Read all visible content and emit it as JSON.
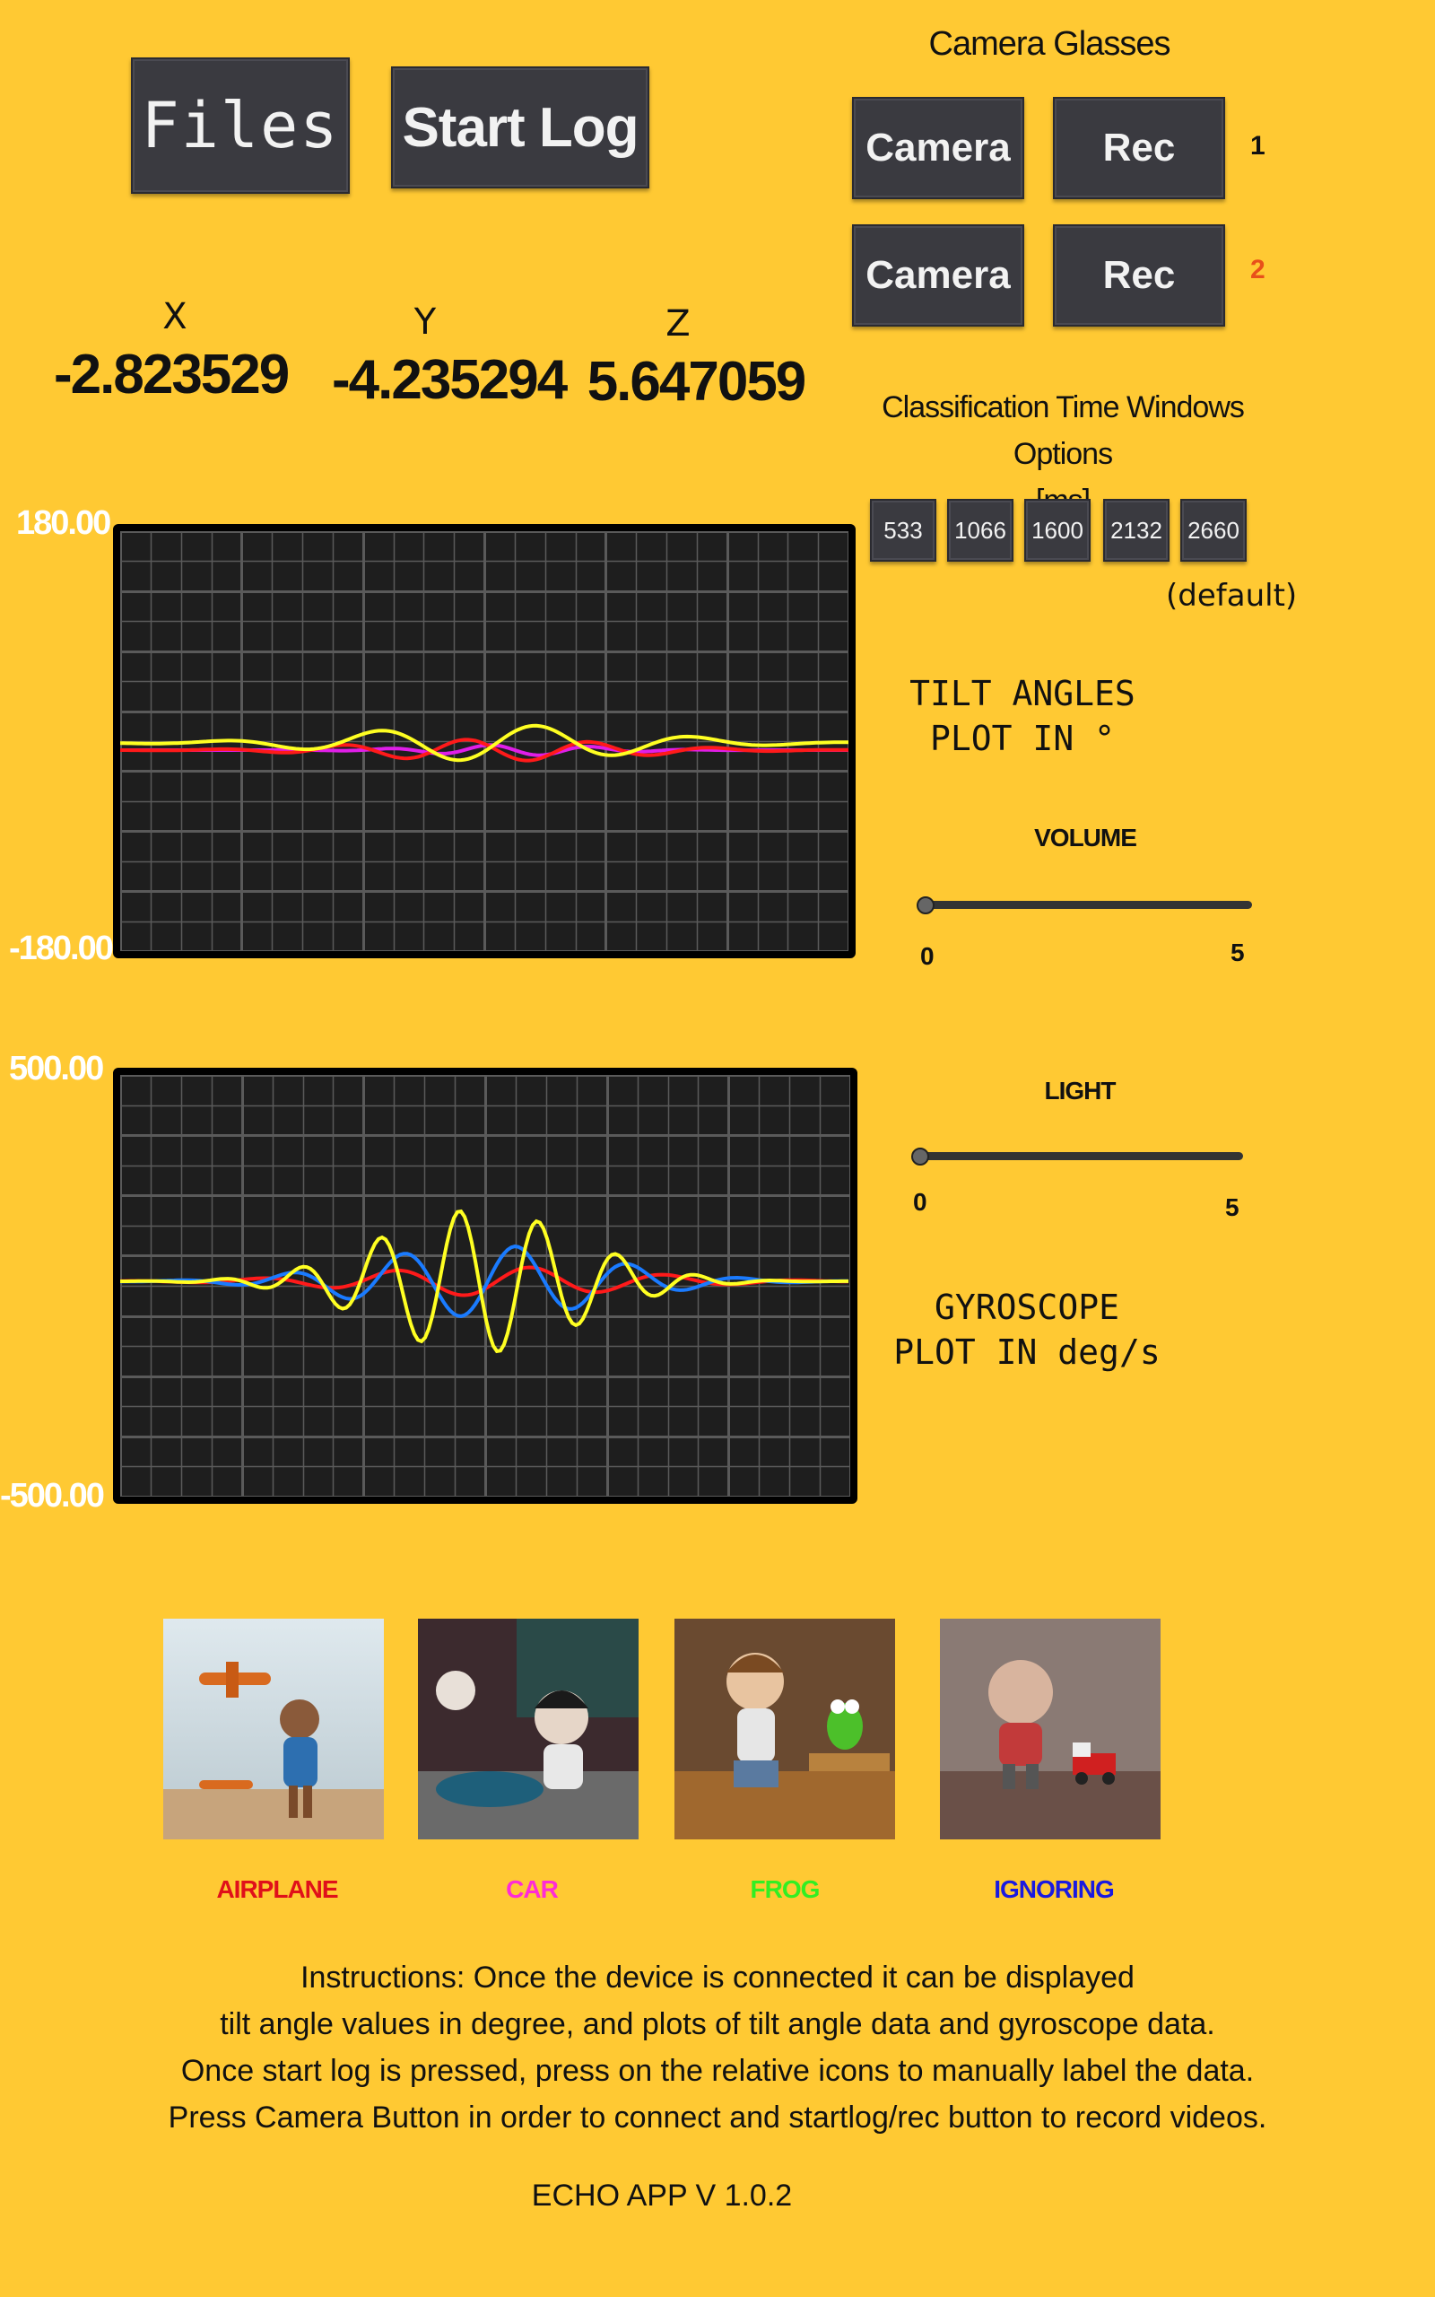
{
  "toolbar": {
    "files_label": "Files",
    "start_log_label": "Start Log"
  },
  "camera_glasses": {
    "title": "Camera Glasses",
    "rows": [
      {
        "camera_label": "Camera",
        "rec_label": "Rec",
        "index": "1",
        "index_color": "#111111"
      },
      {
        "camera_label": "Camera",
        "rec_label": "Rec",
        "index": "2",
        "index_color": "#E8501A"
      }
    ]
  },
  "readout": {
    "x_label": "X",
    "y_label": "Y",
    "z_label": "Z",
    "x_value": "-2.823529",
    "y_value": "-4.235294",
    "z_value": "5.647059"
  },
  "classification": {
    "title_line1": "Classification Time Windows Options",
    "title_line2": "[ms]",
    "options": [
      "533",
      "1066",
      "1600",
      "2132",
      "2660"
    ],
    "default_note": "(default)"
  },
  "tilt_plot": {
    "max_label": "180.00",
    "min_label": "-180.00",
    "caption_line1": "TILT ANGLES",
    "caption_line2": "PLOT IN °"
  },
  "gyro_plot": {
    "max_label": "500.00",
    "min_label": "-500.00",
    "caption_line1": "GYROSCOPE",
    "caption_line2": "PLOT IN deg/s"
  },
  "volume": {
    "title": "VOLUME",
    "min": "0",
    "max": "5",
    "value": 0
  },
  "light": {
    "title": "LIGHT",
    "min": "0",
    "max": "5",
    "value": 0
  },
  "labels": [
    {
      "text": "AIRPLANE",
      "color": "#E0101A",
      "icon": "airplane-image"
    },
    {
      "text": "CAR",
      "color": "#FF2BD6",
      "icon": "car-image"
    },
    {
      "text": "FROG",
      "color": "#33EE22",
      "icon": "frog-image"
    },
    {
      "text": "IGNORING",
      "color": "#1A1AE0",
      "icon": "ignoring-image"
    }
  ],
  "instructions": [
    "Instructions: Once the device is connected it can be displayed",
    "tilt angle values in degree, and plots of tilt angle data and gyroscope data.",
    "Once start log is pressed, press on the relative icons to manually label the data.",
    "Press Camera Button in order to connect and startlog/rec button to record videos."
  ],
  "version": "ECHO APP V 1.0.2",
  "colors": {
    "background": "#FFC933",
    "plot_bg": "#1E1E1E",
    "grid": "#5A5A5A",
    "series_yellow": "#FFFF22",
    "series_red": "#FF1A1A",
    "series_magenta": "#E01EE8",
    "series_blue": "#1A7BFF"
  }
}
